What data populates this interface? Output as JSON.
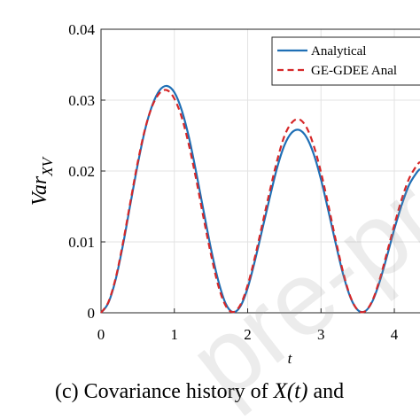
{
  "chart_data": {
    "type": "line",
    "xlabel": "t",
    "ylabel_main": "Var",
    "ylabel_sub": "XV",
    "xlim": [
      0,
      4.35
    ],
    "ylim": [
      0,
      0.04
    ],
    "x_ticks": [
      "0",
      "1",
      "2",
      "3",
      "4"
    ],
    "y_ticks": [
      "0",
      "0.01",
      "0.02",
      "0.03",
      "0.04"
    ],
    "grid": true,
    "legend_position": "top-right",
    "series": [
      {
        "name": "Analytical",
        "color": "#1f6fb5",
        "style": "solid",
        "x": [
          0,
          0.1,
          0.2,
          0.3,
          0.4,
          0.5,
          0.6,
          0.7,
          0.8,
          0.9,
          1.0,
          1.1,
          1.2,
          1.3,
          1.4,
          1.5,
          1.6,
          1.7,
          1.8,
          1.9,
          2.0,
          2.1,
          2.2,
          2.3,
          2.4,
          2.5,
          2.6,
          2.7,
          2.8,
          2.9,
          3.0,
          3.1,
          3.2,
          3.3,
          3.4,
          3.5,
          3.6,
          3.7,
          3.8,
          3.9,
          4.0,
          4.1,
          4.2,
          4.3,
          4.35
        ],
        "y": [
          0,
          0.0014,
          0.0047,
          0.0096,
          0.0153,
          0.0209,
          0.0258,
          0.0293,
          0.0314,
          0.032,
          0.0311,
          0.0286,
          0.0247,
          0.0197,
          0.0143,
          0.009,
          0.0045,
          0.0013,
          0.0001,
          0.0009,
          0.0035,
          0.0074,
          0.0118,
          0.0162,
          0.0204,
          0.0236,
          0.0254,
          0.0258,
          0.0248,
          0.0224,
          0.0188,
          0.0144,
          0.0098,
          0.0055,
          0.0022,
          0.0004,
          0.0002,
          0.0016,
          0.0044,
          0.008,
          0.0118,
          0.0152,
          0.018,
          0.0197,
          0.0203
        ]
      },
      {
        "name": "GE-GDEE Anal",
        "color": "#d62728",
        "style": "dashed",
        "x": [
          0,
          0.1,
          0.2,
          0.3,
          0.4,
          0.5,
          0.6,
          0.7,
          0.8,
          0.9,
          1.0,
          1.1,
          1.2,
          1.3,
          1.4,
          1.5,
          1.6,
          1.7,
          1.8,
          1.9,
          2.0,
          2.1,
          2.2,
          2.3,
          2.4,
          2.5,
          2.6,
          2.7,
          2.8,
          2.9,
          3.0,
          3.1,
          3.2,
          3.3,
          3.4,
          3.5,
          3.6,
          3.7,
          3.8,
          3.9,
          4.0,
          4.1,
          4.2,
          4.3,
          4.35
        ],
        "y": [
          0,
          0.0015,
          0.0049,
          0.0099,
          0.0156,
          0.0212,
          0.0259,
          0.0292,
          0.031,
          0.0314,
          0.0302,
          0.0276,
          0.0236,
          0.0187,
          0.0133,
          0.0082,
          0.0038,
          0.001,
          0.0001,
          0.0011,
          0.0039,
          0.0079,
          0.0125,
          0.0171,
          0.0214,
          0.0249,
          0.0268,
          0.0273,
          0.0262,
          0.0236,
          0.0198,
          0.0152,
          0.0103,
          0.0058,
          0.0023,
          0.0004,
          0.0002,
          0.0017,
          0.0047,
          0.0085,
          0.0124,
          0.016,
          0.0189,
          0.0207,
          0.0213
        ]
      }
    ]
  },
  "caption": {
    "prefix": "(c) Covariance history of ",
    "math": "X(t)",
    "suffix": " and"
  },
  "watermark": "pre-pro"
}
